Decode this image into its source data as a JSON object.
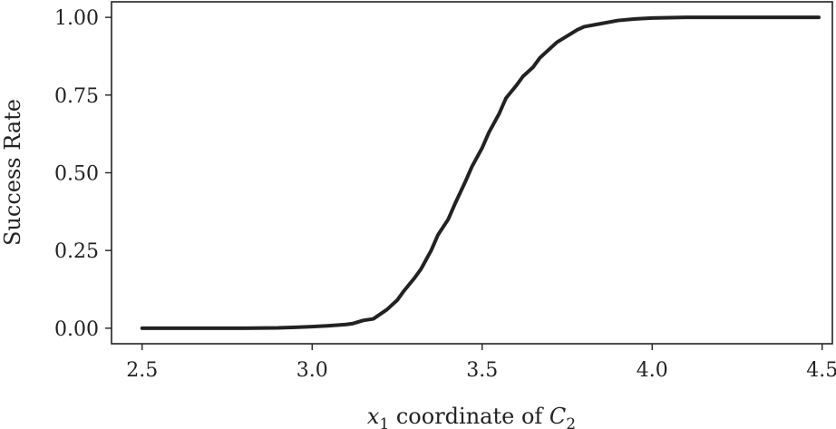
{
  "chart_data": {
    "type": "line",
    "title": "",
    "xlabel": {
      "var": "x",
      "var_sub": "1",
      "mid": " coordinate of ",
      "var2": "C",
      "var2_sub": "2"
    },
    "ylabel": "Success Rate",
    "xlim": [
      2.41,
      4.53
    ],
    "ylim": [
      -0.05,
      1.05
    ],
    "xticks": [
      2.5,
      3.0,
      3.5,
      4.0,
      4.5
    ],
    "xtick_labels": [
      "2.5",
      "3.0",
      "3.5",
      "4.0",
      "4.5"
    ],
    "yticks": [
      0.0,
      0.25,
      0.5,
      0.75,
      1.0
    ],
    "ytick_labels": [
      "0.00",
      "0.25",
      "0.50",
      "0.75",
      "1.00"
    ],
    "grid": false,
    "line_color": "#222222",
    "series": [
      {
        "x": [
          2.5,
          2.6,
          2.7,
          2.8,
          2.9,
          2.95,
          3.0,
          3.05,
          3.1,
          3.12,
          3.15,
          3.18,
          3.2,
          3.22,
          3.25,
          3.27,
          3.3,
          3.32,
          3.35,
          3.37,
          3.4,
          3.42,
          3.45,
          3.47,
          3.5,
          3.52,
          3.55,
          3.57,
          3.6,
          3.62,
          3.65,
          3.67,
          3.7,
          3.72,
          3.75,
          3.78,
          3.8,
          3.85,
          3.9,
          3.95,
          4.0,
          4.1,
          4.2,
          4.3,
          4.49
        ],
        "y": [
          0.0,
          0.0,
          0.0,
          0.0,
          0.001,
          0.003,
          0.005,
          0.008,
          0.012,
          0.015,
          0.025,
          0.03,
          0.045,
          0.06,
          0.09,
          0.12,
          0.16,
          0.19,
          0.25,
          0.3,
          0.35,
          0.4,
          0.47,
          0.52,
          0.58,
          0.63,
          0.69,
          0.74,
          0.78,
          0.81,
          0.84,
          0.87,
          0.9,
          0.92,
          0.94,
          0.96,
          0.97,
          0.98,
          0.99,
          0.995,
          0.998,
          1.0,
          1.0,
          1.0,
          1.0
        ]
      }
    ]
  }
}
